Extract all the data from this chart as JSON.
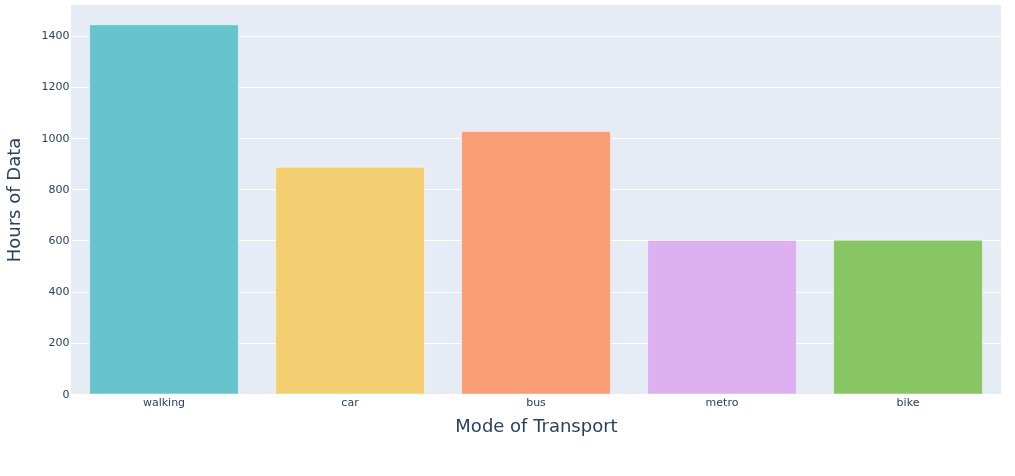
{
  "chart_data": {
    "type": "bar",
    "xlabel": "Mode of Transport",
    "ylabel": "Hours of Data",
    "categories": [
      "walking",
      "car",
      "bus",
      "metro",
      "bike"
    ],
    "values": [
      1443,
      886,
      1026,
      600,
      601
    ],
    "colors": [
      "#67c4cc",
      "#f4cf72",
      "#f89d74",
      "#ddb0f2",
      "#88c563"
    ],
    "ylim": [
      0,
      1520
    ],
    "yticks": [
      0,
      200,
      400,
      600,
      800,
      1000,
      1200,
      1400
    ],
    "grid": "y",
    "legend": false
  }
}
